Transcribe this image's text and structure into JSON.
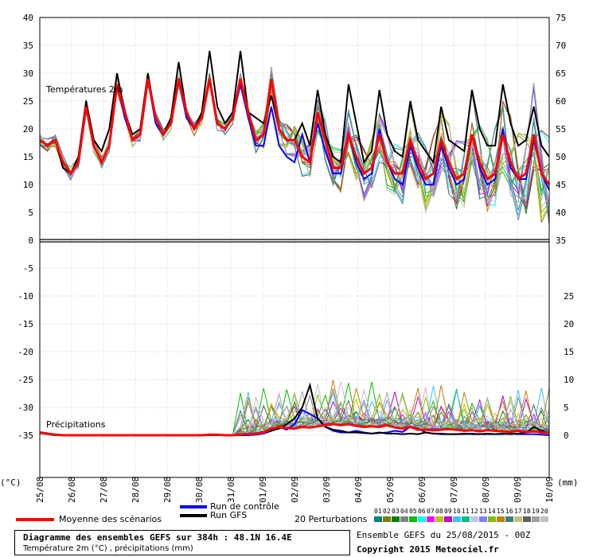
{
  "chart_data": {
    "type": "line",
    "sections": {
      "temperature_label": "Températures 2m",
      "precip_label": "Précipitations"
    },
    "left_axis": {
      "unit_label": "(°C)",
      "ticks": [
        40,
        35,
        30,
        25,
        20,
        15,
        10,
        5,
        0,
        -5,
        -10,
        -15,
        -20,
        -25,
        -30,
        -35
      ],
      "ylim": [
        -35,
        40
      ]
    },
    "right_axis": {
      "unit_label": "(mm)",
      "temp_ticks": [
        75,
        70,
        65,
        60,
        55,
        50,
        45,
        40,
        35
      ],
      "precip_ticks": [
        25,
        20,
        15,
        10,
        5,
        0
      ]
    },
    "x_labels": [
      "25/08",
      "26/08",
      "27/08",
      "28/08",
      "29/08",
      "30/08",
      "31/08",
      "01/09",
      "02/09",
      "03/09",
      "04/09",
      "05/09",
      "06/09",
      "07/09",
      "08/09",
      "09/09",
      "10/09"
    ],
    "grid": true,
    "temperature": {
      "mean": [
        18,
        17,
        18,
        14,
        12,
        14,
        24,
        17,
        14,
        17,
        28,
        23,
        18,
        19,
        29,
        22,
        19,
        21,
        29,
        23,
        20,
        22,
        29,
        21,
        20,
        22,
        29,
        23,
        18,
        19,
        29,
        20,
        18,
        18,
        15,
        14,
        23,
        18,
        13,
        13,
        19,
        15,
        12,
        13,
        19,
        14,
        12,
        12,
        18,
        14,
        11,
        12,
        18,
        14,
        11,
        12,
        19,
        14,
        11,
        12,
        19,
        14,
        11,
        12,
        19,
        12,
        10
      ],
      "gfs": [
        18,
        17,
        18,
        13,
        12,
        15,
        25,
        18,
        16,
        20,
        30,
        23,
        19,
        20,
        30,
        22,
        19,
        22,
        32,
        23,
        20,
        23,
        34,
        24,
        21,
        23,
        34,
        23,
        22,
        21,
        26,
        20,
        18,
        18,
        21,
        17,
        27,
        19,
        15,
        14,
        28,
        21,
        14,
        16,
        27,
        19,
        16,
        15,
        25,
        18,
        16,
        14,
        24,
        18,
        17,
        16,
        27,
        20,
        17,
        17,
        28,
        21,
        17,
        18,
        24,
        17,
        15
      ],
      "control": [
        18,
        17,
        18,
        14,
        12,
        14,
        24,
        17,
        14,
        17,
        28,
        22,
        18,
        19,
        29,
        21,
        19,
        21,
        29,
        22,
        20,
        22,
        29,
        21,
        20,
        22,
        28,
        22,
        17,
        17,
        24,
        17,
        15,
        14,
        19,
        14,
        21,
        16,
        12,
        12,
        19,
        14,
        11,
        12,
        20,
        14,
        11,
        10,
        17,
        13,
        10,
        10,
        17,
        13,
        10,
        11,
        19,
        13,
        10,
        11,
        20,
        13,
        11,
        11,
        18,
        12,
        9
      ]
    },
    "precip": {
      "mean": [
        0.5,
        0.3,
        0.1,
        0,
        0,
        0,
        0,
        0,
        0,
        0,
        0,
        0,
        0,
        0,
        0,
        0,
        0,
        0,
        0,
        0,
        0,
        0,
        0.1,
        0.1,
        0,
        0,
        0.1,
        0.2,
        0.3,
        0.5,
        1.2,
        1.5,
        1.3,
        1.2,
        1.5,
        1.4,
        1.6,
        1.8,
        2.0,
        1.8,
        2.0,
        1.7,
        1.5,
        1.6,
        1.5,
        1.8,
        1.4,
        1.2,
        1.5,
        1.0,
        1.0,
        0.9,
        1.0,
        1.1,
        1.0,
        0.8,
        0.9,
        0.7,
        0.9,
        0.8,
        0.7,
        0.6,
        0.8,
        0.6,
        0.7,
        0.5,
        0.4
      ],
      "gfs": [
        0.4,
        0.2,
        0,
        0,
        0,
        0,
        0,
        0,
        0,
        0,
        0,
        0,
        0,
        0,
        0,
        0,
        0,
        0,
        0,
        0,
        0,
        0,
        0,
        0,
        0,
        0,
        0,
        0.1,
        0.2,
        0.5,
        0.8,
        1.2,
        2.0,
        3.0,
        5.0,
        9.0,
        3.0,
        1.5,
        1.0,
        0.8,
        0.5,
        0.5,
        0.4,
        0.3,
        0.5,
        0.3,
        0.3,
        0.2,
        0.3,
        0.2,
        0.5,
        0.3,
        0.2,
        0.2,
        0.2,
        0.3,
        0.2,
        0.2,
        0.3,
        0.2,
        0.3,
        0.2,
        0.3,
        0.5,
        1.5,
        0.8,
        0.4
      ],
      "control": [
        0.4,
        0.2,
        0,
        0,
        0,
        0,
        0,
        0,
        0,
        0,
        0,
        0,
        0,
        0,
        0,
        0,
        0,
        0,
        0,
        0,
        0,
        0,
        0,
        0,
        0,
        0,
        0,
        0,
        0.1,
        0.3,
        0.8,
        1.5,
        1.0,
        2.0,
        4.5,
        3.8,
        3.0,
        1.5,
        0.8,
        0.5,
        0.5,
        0.8,
        0.5,
        0.3,
        0.4,
        0.5,
        0.8,
        0.6,
        1.5,
        1.2,
        0.5,
        0.3,
        0.3,
        0.2,
        0.2,
        0.2,
        0.3,
        0.2,
        0.2,
        0.2,
        0.2,
        0.3,
        0.2,
        0.2,
        0.2,
        0.1,
        0
      ]
    }
  },
  "legend": {
    "mean_label": "Moyenne des scénarios",
    "control_label": "Run de contrôle",
    "gfs_label": "Run GFS",
    "perturbations_label": "20 Perturbations",
    "perturbation_numbers": [
      "01",
      "02",
      "03",
      "04",
      "05",
      "06",
      "07",
      "08",
      "09",
      "10",
      "11",
      "12",
      "13",
      "14",
      "15",
      "16",
      "17",
      "18",
      "19",
      "20"
    ],
    "colors": {
      "mean": "#ff0000",
      "control": "#0000ff",
      "gfs": "#000000",
      "perturbations": [
        "#008080",
        "#808000",
        "#008000",
        "#808080",
        "#00c000",
        "#00ffff",
        "#ff00ff",
        "#c0c000",
        "#c000c0",
        "#40c0ff",
        "#00c080",
        "#c0c0ff",
        "#8080ff",
        "#80c000",
        "#c08000",
        "#408080",
        "#c0c080",
        "#606060",
        "#a0a0a0",
        "#c0c0c0"
      ]
    }
  },
  "info": {
    "title": "Diagramme des ensembles GEFS sur 384h : 48.1N 16.4E",
    "subtitle": "Température 2m (°C) , précipitations (mm)",
    "run": "Ensemble GEFS du 25/08/2015 - 00Z",
    "copyright": "Copyright 2015 Meteociel.fr"
  }
}
